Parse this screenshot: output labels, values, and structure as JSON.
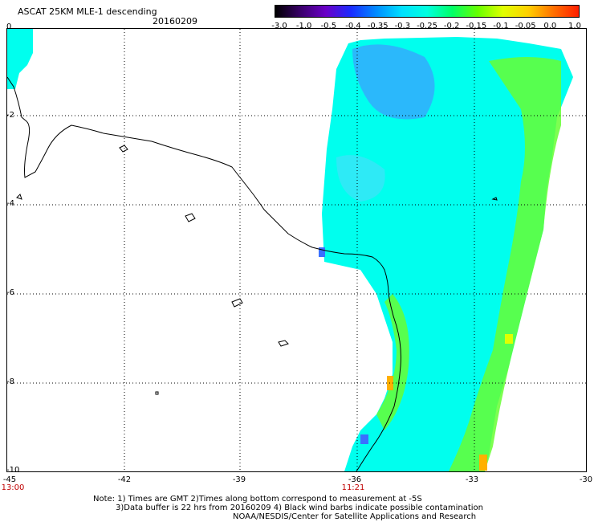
{
  "header": {
    "title": "ASCAT 25KM MLE-1 descending",
    "date": "20160209"
  },
  "colorbar": {
    "ticks": [
      "-3.0",
      "-1.0",
      "-0.5",
      "-0.4",
      "-0.35",
      "-0.3",
      "-0.25",
      "-0.2",
      "-0.15",
      "-0.1",
      "-0.05",
      "0.0",
      "1.0"
    ],
    "colors": [
      "#000000",
      "#3a006a",
      "#6a00c8",
      "#1a2cff",
      "#008cff",
      "#00e0ff",
      "#00ffe0",
      "#00ff66",
      "#66ff00",
      "#e0ff00",
      "#ffd000",
      "#ff7000",
      "#ff1e00"
    ]
  },
  "map": {
    "lat_labels": [
      "0",
      "-2",
      "-4",
      "-6",
      "-8",
      "-10"
    ],
    "lon_labels": [
      "-45",
      "-42",
      "-39",
      "-36",
      "-33",
      "-30"
    ],
    "time_labels": [
      "13:00",
      "11:21"
    ],
    "colors": {
      "land_outline": "#000000",
      "grid": "#000000",
      "swath_main": "#00ffee",
      "swath_low": "#3aa0ff",
      "swath_high": "#66ff33",
      "time_label": "#c00000"
    }
  },
  "notes": {
    "line1": "Note: 1) Times are GMT 2)Times along bottom correspond to measurement at -5S",
    "line2": "3)Data buffer is 22 hrs from 20160209 4) Black wind barbs indicate possible contamination",
    "line3": "NOAA/NESDIS/Center for Satellite Applications and Research"
  }
}
